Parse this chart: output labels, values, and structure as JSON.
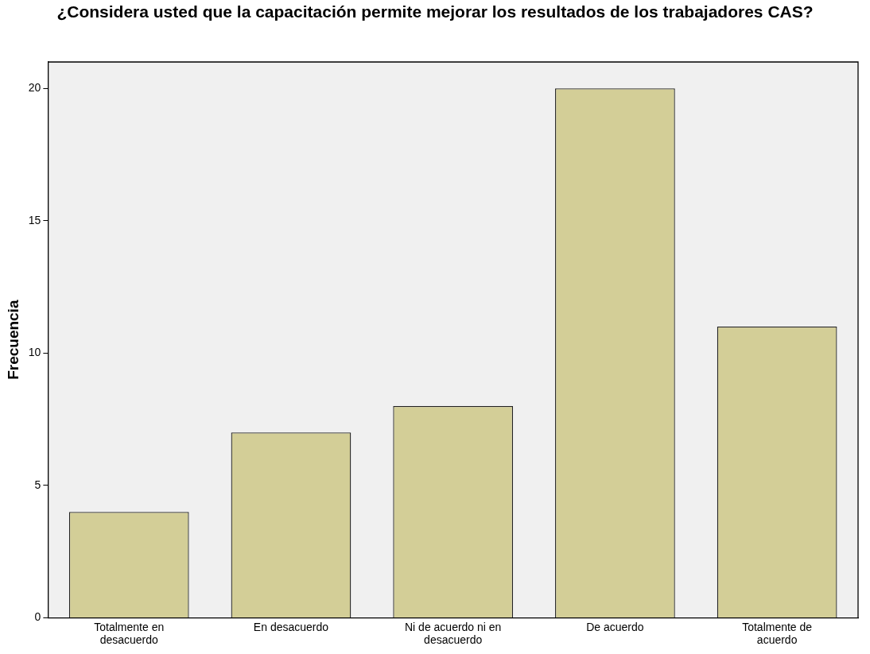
{
  "chart_data": {
    "type": "bar",
    "title": "¿Considera usted que la capacitación permite mejorar los resultados de los trabajadores CAS?",
    "ylabel": "Frecuencia",
    "categories": [
      "Totalmente en desacuerdo",
      "En desacuerdo",
      "Ni de acuerdo ni en desacuerdo",
      "De acuerdo",
      "Totalmente de acuerdo"
    ],
    "values": [
      4,
      7,
      8,
      20,
      11
    ],
    "color": "#d3ce97",
    "ylim": [
      0,
      21
    ],
    "yticks": [
      0,
      5,
      10,
      15,
      20
    ],
    "grid": false,
    "legend": false
  }
}
